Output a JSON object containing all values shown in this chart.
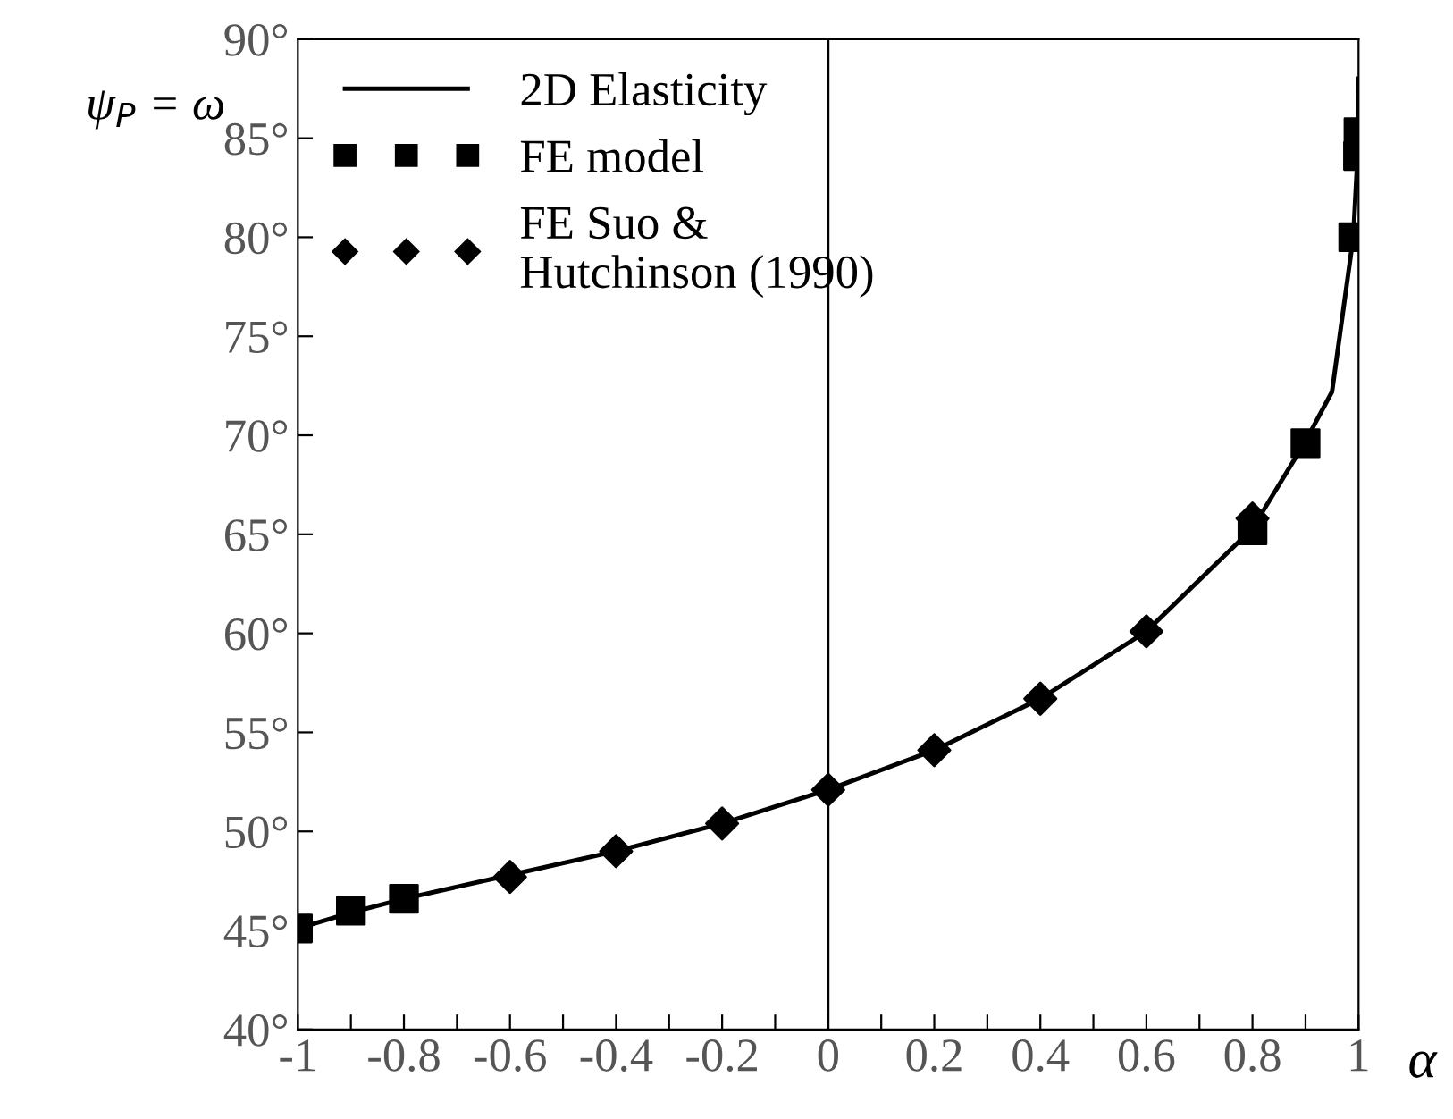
{
  "chart_data": {
    "type": "line",
    "xlabel": "α",
    "ylabel": "ψ$_{P}$ = ω",
    "xlim": [
      -1,
      1
    ],
    "ylim": [
      40,
      90
    ],
    "xticks": [
      {
        "value": -1,
        "label": "-1"
      },
      {
        "value": -0.9,
        "label": null
      },
      {
        "value": -0.8,
        "label": "-0.8"
      },
      {
        "value": -0.7,
        "label": null
      },
      {
        "value": -0.6,
        "label": "-0.6"
      },
      {
        "value": -0.5,
        "label": null
      },
      {
        "value": -0.4,
        "label": "-0.4"
      },
      {
        "value": -0.3,
        "label": null
      },
      {
        "value": -0.2,
        "label": "-0.2"
      },
      {
        "value": -0.1,
        "label": null
      },
      0,
      {
        "value": 0.1,
        "label": null
      },
      0.2,
      {
        "value": 0.3,
        "label": null
      },
      0.4,
      {
        "value": 0.5,
        "label": null
      },
      0.6,
      {
        "value": 0.7,
        "label": null
      },
      0.8,
      {
        "value": 0.9,
        "label": null
      },
      1
    ],
    "yticks": [
      {
        "value": 40,
        "label": "40°"
      },
      {
        "value": 45,
        "label": "45°"
      },
      {
        "value": 50,
        "label": "50°"
      },
      {
        "value": 55,
        "label": "55°"
      },
      {
        "value": 60,
        "label": "60°"
      },
      {
        "value": 65,
        "label": "65°"
      },
      {
        "value": 70,
        "label": "70°"
      },
      {
        "value": 75,
        "label": "75°"
      },
      {
        "value": 80,
        "label": "80°"
      },
      {
        "value": 85,
        "label": "85°"
      },
      {
        "value": 90,
        "label": "90°"
      }
    ],
    "grid": false,
    "legend": "top left",
    "ref_lines": [
      {
        "axis": "x",
        "value": 0,
        "color": "#000000"
      }
    ],
    "series": [
      {
        "name": "2D Elasticity",
        "color": "#000000",
        "marker": "none",
        "line_style": "solid",
        "x": [
          -1,
          -0.9,
          -0.8,
          -0.6,
          -0.4,
          -0.2,
          0,
          0.2,
          0.4,
          0.6,
          0.8,
          0.9,
          0.95,
          0.99,
          0.999,
          1
        ],
        "values": [
          45.1,
          45.9,
          46.6,
          47.8,
          49.0,
          50.4,
          52.1,
          54.1,
          56.7,
          60.1,
          65.3,
          69.7,
          72.2,
          80.0,
          84.5,
          88.0
        ]
      },
      {
        "name": "FE model",
        "type": "scatter",
        "color": "#000000",
        "marker": "square",
        "x": [
          -1,
          -0.9,
          -0.8,
          0.8,
          0.9,
          0.99,
          0.999,
          0.9999
        ],
        "values": [
          45.1,
          46.0,
          46.6,
          65.2,
          69.6,
          80.0,
          84.1,
          85.3
        ]
      },
      {
        "name": "FE Suo & Hutchinson (1990)",
        "type": "scatter",
        "color": "#000000",
        "marker": "diamond",
        "x": [
          -0.6,
          -0.4,
          -0.2,
          0,
          0.2,
          0.4,
          0.6,
          0.8
        ],
        "values": [
          47.7,
          49.0,
          50.4,
          52.1,
          54.1,
          56.7,
          60.1,
          65.8
        ]
      }
    ]
  }
}
